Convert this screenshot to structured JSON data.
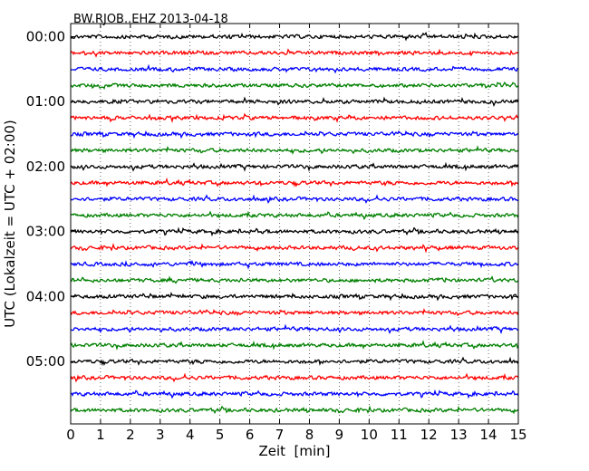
{
  "chart_data": {
    "type": "line",
    "title": "BW.RJOB..EHZ 2013-04-18",
    "xlabel": "Zeit  [min]",
    "ylabel": "UTC (Lokalzeit = UTC + 02:00)",
    "xlim": [
      0,
      15
    ],
    "x_ticks": [
      "0",
      "1",
      "2",
      "3",
      "4",
      "5",
      "6",
      "7",
      "8",
      "9",
      "10",
      "11",
      "12",
      "13",
      "14",
      "15"
    ],
    "y_ticks": [
      {
        "label": "00:00",
        "row": 0
      },
      {
        "label": "01:00",
        "row": 4
      },
      {
        "label": "02:00",
        "row": 8
      },
      {
        "label": "03:00",
        "row": 12
      },
      {
        "label": "04:00",
        "row": 16
      },
      {
        "label": "05:00",
        "row": 20
      }
    ],
    "vertical_grid": "dotted, every 1 min",
    "traces_per_hour": 4,
    "trace_count": 24,
    "trace_colors": [
      "#000000",
      "#ff0000",
      "#0000ff",
      "#008000"
    ],
    "series": [
      {
        "start": "00:00",
        "color": "#000000"
      },
      {
        "start": "00:15",
        "color": "#ff0000"
      },
      {
        "start": "00:30",
        "color": "#0000ff"
      },
      {
        "start": "00:45",
        "color": "#008000"
      },
      {
        "start": "01:00",
        "color": "#000000"
      },
      {
        "start": "01:15",
        "color": "#ff0000"
      },
      {
        "start": "01:30",
        "color": "#0000ff"
      },
      {
        "start": "01:45",
        "color": "#008000"
      },
      {
        "start": "02:00",
        "color": "#000000"
      },
      {
        "start": "02:15",
        "color": "#ff0000"
      },
      {
        "start": "02:30",
        "color": "#0000ff"
      },
      {
        "start": "02:45",
        "color": "#008000"
      },
      {
        "start": "03:00",
        "color": "#000000"
      },
      {
        "start": "03:15",
        "color": "#ff0000"
      },
      {
        "start": "03:30",
        "color": "#0000ff"
      },
      {
        "start": "03:45",
        "color": "#008000"
      },
      {
        "start": "04:00",
        "color": "#000000"
      },
      {
        "start": "04:15",
        "color": "#ff0000"
      },
      {
        "start": "04:30",
        "color": "#0000ff"
      },
      {
        "start": "04:45",
        "color": "#008000"
      },
      {
        "start": "05:00",
        "color": "#000000"
      },
      {
        "start": "05:15",
        "color": "#ff0000"
      },
      {
        "start": "05:30",
        "color": "#0000ff"
      },
      {
        "start": "05:45",
        "color": "#008000"
      }
    ]
  }
}
